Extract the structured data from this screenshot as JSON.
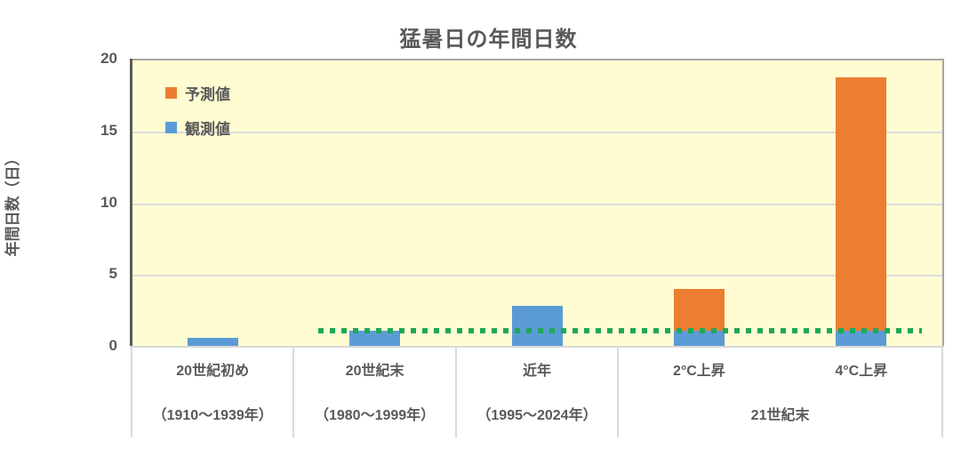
{
  "title": "猛暑日の年間日数",
  "y_axis": {
    "title": "年間日数（日）",
    "ticks": [
      0,
      5,
      10,
      15,
      20
    ],
    "max": 20
  },
  "legend": [
    {
      "label": "予測値",
      "color": "#ED7D31"
    },
    {
      "label": "観測値",
      "color": "#5B9BD5"
    }
  ],
  "colors": {
    "predicted": "#ED7D31",
    "observed": "#5B9BD5",
    "reference_line": "#1FA858",
    "plot_background": "#FFFCD2",
    "text": "#595959",
    "axis_line": "#595959",
    "grid_line": "#DCDCDC",
    "divider_line": "#D9D9D9",
    "plot_border": "#A6A6A6"
  },
  "chart_data": {
    "type": "bar",
    "title": "猛暑日の年間日数",
    "xlabel": "",
    "ylabel": "年間日数（日）",
    "ylim": [
      0,
      20
    ],
    "yticks": [
      0,
      5,
      10,
      15,
      20
    ],
    "grid": true,
    "plot_bg": "#FFFCD2",
    "legend_position": "top-left-inside",
    "categories": [
      "20世紀初め",
      "20世紀末",
      "近年",
      "2°C上昇",
      "4°C上昇"
    ],
    "secondary_categories": [
      {
        "label": "（1910～1939年）",
        "span": [
          0,
          0
        ]
      },
      {
        "label": "（1980～1999年）",
        "span": [
          1,
          1
        ]
      },
      {
        "label": "（1995～2024年）",
        "span": [
          2,
          2
        ]
      },
      {
        "label": "21世紀末",
        "span": [
          3,
          4
        ]
      }
    ],
    "series": [
      {
        "name": "観測値",
        "color": "#5B9BD5",
        "values": [
          0.7,
          1.2,
          2.9,
          1.2,
          1.2
        ]
      },
      {
        "name": "予測値",
        "color": "#ED7D31",
        "values": [
          null,
          null,
          null,
          4.1,
          18.8
        ],
        "note": "bar total height; orange segment drawn stacked above the 1.2 observed base"
      }
    ],
    "reference_line": {
      "value": 1.2,
      "color": "#1FA858",
      "style": "dotted",
      "x_start_frac": 0.23,
      "x_end_frac": 0.975
    }
  }
}
